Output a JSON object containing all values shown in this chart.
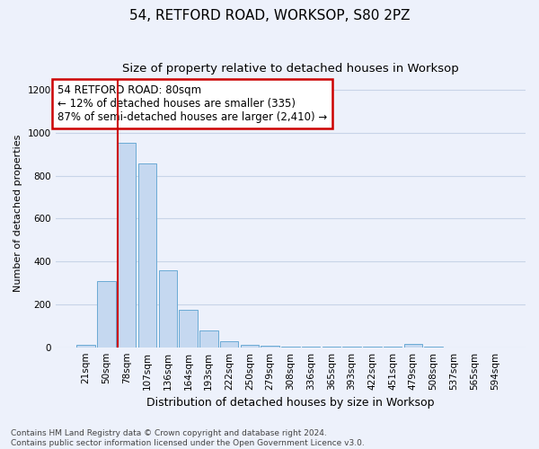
{
  "title": "54, RETFORD ROAD, WORKSOP, S80 2PZ",
  "subtitle": "Size of property relative to detached houses in Worksop",
  "xlabel": "Distribution of detached houses by size in Worksop",
  "ylabel": "Number of detached properties",
  "categories": [
    "21sqm",
    "50sqm",
    "78sqm",
    "107sqm",
    "136sqm",
    "164sqm",
    "193sqm",
    "222sqm",
    "250sqm",
    "279sqm",
    "308sqm",
    "336sqm",
    "365sqm",
    "393sqm",
    "422sqm",
    "451sqm",
    "479sqm",
    "508sqm",
    "537sqm",
    "565sqm",
    "594sqm"
  ],
  "values": [
    10,
    310,
    955,
    858,
    358,
    175,
    78,
    27,
    10,
    5,
    3,
    2,
    2,
    2,
    1,
    1,
    15,
    1,
    0,
    0,
    0
  ],
  "bar_color": "#c5d8f0",
  "bar_edge_color": "#6aaad4",
  "highlight_line_color": "#cc0000",
  "annotation_text": "54 RETFORD ROAD: 80sqm\n← 12% of detached houses are smaller (335)\n87% of semi-detached houses are larger (2,410) →",
  "annotation_box_color": "#ffffff",
  "annotation_box_edge_color": "#cc0000",
  "ylim": [
    0,
    1250
  ],
  "yticks": [
    0,
    200,
    400,
    600,
    800,
    1000,
    1200
  ],
  "grid_color": "#c8d4e8",
  "background_color": "#edf1fb",
  "footer": "Contains HM Land Registry data © Crown copyright and database right 2024.\nContains public sector information licensed under the Open Government Licence v3.0.",
  "title_fontsize": 11,
  "subtitle_fontsize": 9.5,
  "xlabel_fontsize": 9,
  "ylabel_fontsize": 8,
  "tick_fontsize": 7.5,
  "annotation_fontsize": 8.5,
  "footer_fontsize": 6.5
}
